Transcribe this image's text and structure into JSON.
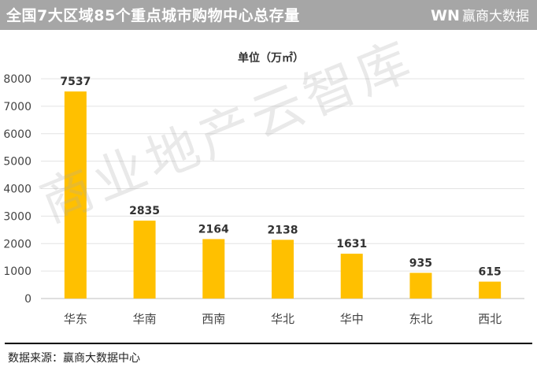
{
  "header": {
    "title": "全国7大区域85个重点城市购物中心总存量",
    "brand_mark": "WN",
    "brand_name": "赢商大数据",
    "colors": {
      "bar": "#a6a6a6",
      "text": "#ffffff"
    }
  },
  "watermark": "商业地产云智库",
  "footer": {
    "source": "数据来源：赢商大数据中心"
  },
  "chart_data": {
    "type": "bar",
    "title": "全国7大区域85个重点城市购物中心总存量",
    "subtitle": "单位（万㎡）",
    "xlabel": "",
    "ylabel": "",
    "categories": [
      "华东",
      "华南",
      "西南",
      "华北",
      "华中",
      "东北",
      "西北"
    ],
    "values": [
      7537,
      2835,
      2164,
      2138,
      1631,
      935,
      615
    ],
    "ylim": [
      0,
      8000
    ],
    "yticks": [
      0,
      1000,
      2000,
      3000,
      4000,
      5000,
      6000,
      7000,
      8000
    ],
    "grid": true,
    "bar_color": "#ffc000"
  }
}
